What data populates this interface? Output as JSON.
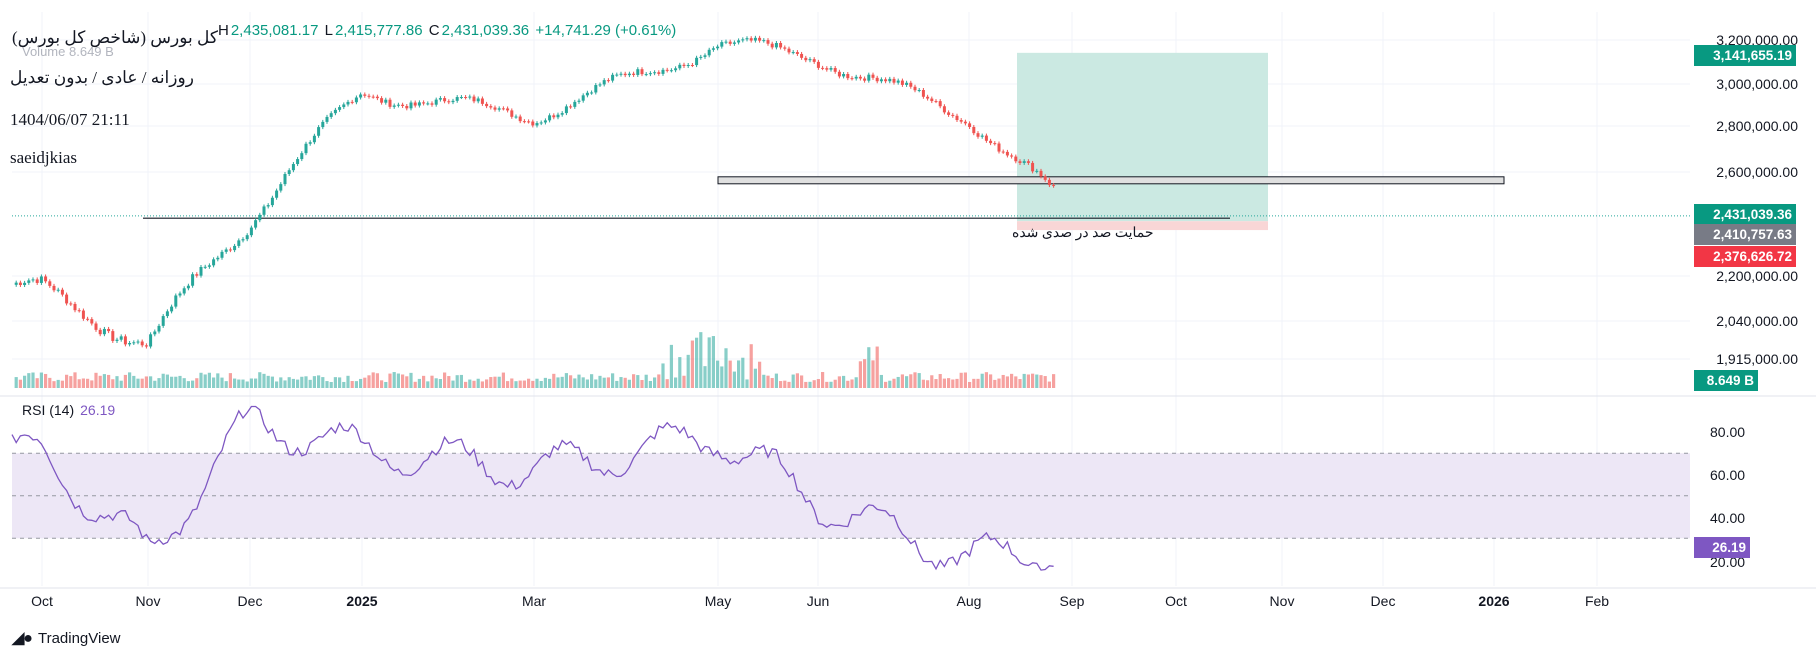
{
  "header": {
    "symbol": "کل بورس (شاخص کل بورس)",
    "ohlc": [
      {
        "k": "H",
        "v": "2,435,081.17"
      },
      {
        "k": "L",
        "v": "2,415,777.86"
      },
      {
        "k": "C",
        "v": "2,431,039.36"
      },
      {
        "k": "",
        "v": "+14,741.29 (+0.61%)"
      }
    ],
    "volume_label": "Volume",
    "volume_value": "8.649 B"
  },
  "notes": {
    "line1": "روزانه / عادی / بدون تعدیل",
    "line2": "1404/06/07 21:11",
    "line3": "saeidjkias"
  },
  "annotation": "حمایت صد در صدی شده",
  "rsi": {
    "label": "RSI (14)",
    "value": "26.19"
  },
  "price_tags": {
    "target": "3,141,655.19",
    "current": "2,431,039.36",
    "entry": "2,410,757.63",
    "stop": "2,376,626.72",
    "volume": "8.649 B",
    "rsi": "26.19"
  },
  "colors": {
    "up": "#26a69a",
    "down": "#ef5350",
    "rsi_line": "#7e57c2",
    "rsi_band": "#ede7f6",
    "target_zone": "#cbe9e2",
    "stop_zone": "#f9d6d6",
    "grid": "#f0f3fa"
  },
  "brand": "TradingView",
  "chart_data": [
    {
      "type": "line",
      "title": "کل بورس (شاخص کل بورس)",
      "y_axis_ticks": [
        "3,200,000.00",
        "3,000,000.00",
        "2,800,000.00",
        "2,600,000.00",
        "2,200,000.00",
        "2,040,000.00",
        "1,915,000.00"
      ],
      "x_axis_ticks": [
        "Oct",
        "Nov",
        "Dec",
        "2025",
        "Mar",
        "May",
        "Jun",
        "Aug",
        "Sep",
        "Oct",
        "Nov",
        "Dec",
        "2026",
        "Feb"
      ],
      "series": [
        {
          "x": [
            "Oct",
            "Nov",
            "Dec",
            "2025",
            "Mar",
            "May",
            "Jun",
            "Aug",
            "Sep"
          ],
          "values": [
            2150000,
            1960000,
            2420000,
            2960000,
            2850000,
            3180000,
            3120000,
            2840000,
            2430000
          ]
        }
      ],
      "levels": [
        {
          "label": "حمایت صد در صدی شده",
          "value": 2410757.63
        },
        {
          "value": 2570000
        }
      ],
      "position": {
        "target": 3141655.19,
        "entry": 2410757.63,
        "stop": 2376626.72
      }
    },
    {
      "type": "line",
      "title": "RSI (14)",
      "y_axis_ticks": [
        "80.00",
        "60.00",
        "40.00",
        "20.00"
      ],
      "band": [
        30,
        70
      ],
      "midline": 50,
      "series": [
        {
          "name": "RSI (14)",
          "x": [
            "Oct",
            "Nov",
            "Dec",
            "2025",
            "Mar",
            "May",
            "Jun",
            "Aug",
            "Sep"
          ],
          "values": [
            70,
            22,
            85,
            72,
            62,
            78,
            47,
            20,
            26.19
          ]
        }
      ]
    }
  ]
}
